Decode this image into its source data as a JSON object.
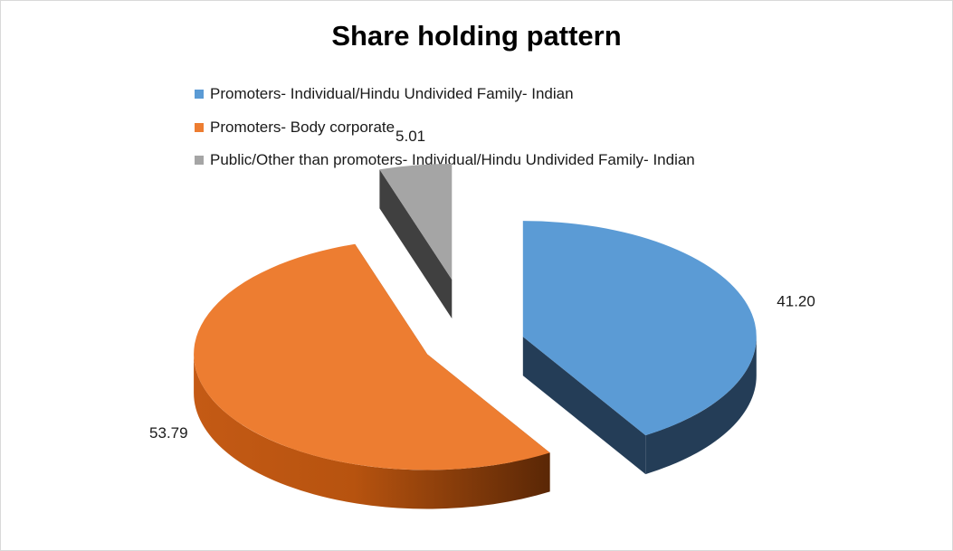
{
  "chart_data": {
    "type": "pie",
    "title": "Share holding pattern",
    "legend_position": "top",
    "labels": [
      "Promoters- Individual/Hindu Undivided Family- Indian",
      "Promoters- Body corporate",
      "Public/Other than promoters- Individual/Hindu Undivided Family- Indian"
    ],
    "values": [
      41.2,
      53.79,
      5.01
    ],
    "value_labels": [
      "41.20",
      "53.79",
      "5.01"
    ],
    "colors": [
      "#5b9bd5",
      "#ed7d31",
      "#a5a5a5"
    ],
    "exploded": true,
    "style": "3d"
  }
}
